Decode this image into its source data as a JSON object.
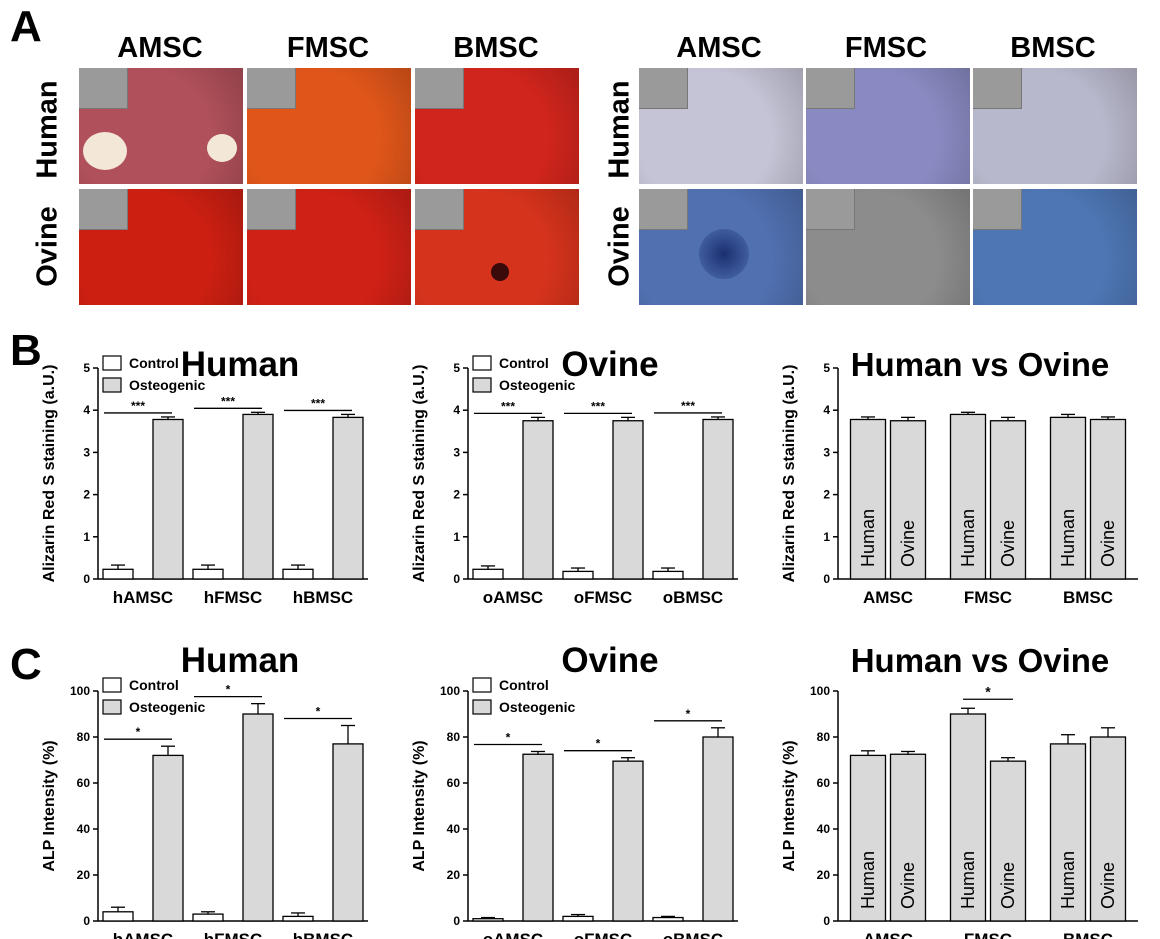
{
  "panels": {
    "A": "A",
    "B": "B",
    "C": "C"
  },
  "micrographs": {
    "column_labels": [
      "AMSC",
      "FMSC",
      "BMSC"
    ],
    "row_labels": [
      "Human",
      "Ovine"
    ],
    "left_colors": [
      [
        "#b0505a",
        "#e0561a",
        "#d0251c"
      ],
      [
        "#cc1f12",
        "#cf2116",
        "#d6331c"
      ]
    ],
    "right_colors": [
      [
        "#c4c4d6",
        "#8a8ac2",
        "#b8b8cc"
      ],
      [
        "#5070b0",
        "#8c8c8c",
        "#4e76b4"
      ]
    ]
  },
  "legend": {
    "control": "Control",
    "osteogenic": "Osteogenic"
  },
  "stars": {
    "three": "***",
    "one": "*"
  },
  "colors": {
    "control": "#ffffff",
    "osteogenic": "#d9d9d9",
    "axis": "#000000"
  },
  "chart_data": [
    {
      "id": "B-human",
      "type": "bar",
      "title": "Human",
      "ylabel": "Alizarin Red S staining (a.U.)",
      "ylim": [
        0,
        5
      ],
      "yticks": [
        0,
        1,
        2,
        3,
        4,
        5
      ],
      "categories": [
        "hAMSC",
        "hFMSC",
        "hBMSC"
      ],
      "series": [
        {
          "name": "Control",
          "values": [
            0.23,
            0.23,
            0.23
          ],
          "errors": [
            0.1,
            0.1,
            0.1
          ]
        },
        {
          "name": "Osteogenic",
          "values": [
            3.78,
            3.9,
            3.83
          ],
          "errors": [
            0.06,
            0.05,
            0.07
          ]
        }
      ],
      "significance": [
        "***",
        "***",
        "***"
      ],
      "legend": true
    },
    {
      "id": "B-ovine",
      "type": "bar",
      "title": "Ovine",
      "ylabel": "Alizarin Red S staining (a.U.)",
      "ylim": [
        0,
        5
      ],
      "yticks": [
        0,
        1,
        2,
        3,
        4,
        5
      ],
      "categories": [
        "oAMSC",
        "oFMSC",
        "oBMSC"
      ],
      "series": [
        {
          "name": "Control",
          "values": [
            0.23,
            0.18,
            0.18
          ],
          "errors": [
            0.08,
            0.08,
            0.08
          ]
        },
        {
          "name": "Osteogenic",
          "values": [
            3.75,
            3.75,
            3.78
          ],
          "errors": [
            0.08,
            0.08,
            0.06
          ]
        }
      ],
      "significance": [
        "***",
        "***",
        "***"
      ],
      "legend": true
    },
    {
      "id": "B-compare",
      "type": "bar",
      "title": "Human vs Ovine",
      "ylabel": "Alizarin Red S staining (a.U.)",
      "ylim": [
        0,
        5
      ],
      "yticks": [
        0,
        1,
        2,
        3,
        4,
        5
      ],
      "categories": [
        "AMSC",
        "FMSC",
        "BMSC"
      ],
      "series": [
        {
          "name": "Human",
          "values": [
            3.78,
            3.9,
            3.83
          ],
          "errors": [
            0.06,
            0.05,
            0.07
          ]
        },
        {
          "name": "Ovine",
          "values": [
            3.75,
            3.75,
            3.78
          ],
          "errors": [
            0.08,
            0.08,
            0.06
          ]
        }
      ],
      "bar_text": true,
      "legend": false
    },
    {
      "id": "C-human",
      "type": "bar",
      "title": "Human",
      "ylabel": "ALP Intensity (%)",
      "ylim": [
        0,
        100
      ],
      "yticks": [
        0,
        20,
        40,
        60,
        80,
        100
      ],
      "categories": [
        "hAMSC",
        "hFMSC",
        "hBMSC"
      ],
      "series": [
        {
          "name": "Control",
          "values": [
            4,
            3,
            2
          ],
          "errors": [
            2,
            1,
            1.5
          ]
        },
        {
          "name": "Osteogenic",
          "values": [
            72,
            90,
            77
          ],
          "errors": [
            4,
            4.5,
            8
          ]
        }
      ],
      "significance": [
        "*",
        "*",
        "*"
      ],
      "legend": true
    },
    {
      "id": "C-ovine",
      "type": "bar",
      "title": "Ovine",
      "ylabel": "ALP Intensity (%)",
      "ylim": [
        0,
        100
      ],
      "yticks": [
        0,
        20,
        40,
        60,
        80,
        100
      ],
      "categories": [
        "oAMSC",
        "oFMSC",
        "oBMSC"
      ],
      "series": [
        {
          "name": "Control",
          "values": [
            1,
            2,
            1.5
          ],
          "errors": [
            0.5,
            0.8,
            0.5
          ]
        },
        {
          "name": "Osteogenic",
          "values": [
            72.5,
            69.5,
            80
          ],
          "errors": [
            1.2,
            1.5,
            4
          ]
        }
      ],
      "significance": [
        "*",
        "*",
        "*"
      ],
      "legend": true
    },
    {
      "id": "C-compare",
      "type": "bar",
      "title": "Human vs Ovine",
      "ylabel": "ALP Intensity (%)",
      "ylim": [
        0,
        100
      ],
      "yticks": [
        0,
        20,
        40,
        60,
        80,
        100
      ],
      "categories": [
        "AMSC",
        "FMSC",
        "BMSC"
      ],
      "series": [
        {
          "name": "Human",
          "values": [
            72,
            90,
            77
          ],
          "errors": [
            2,
            2.5,
            4
          ]
        },
        {
          "name": "Ovine",
          "values": [
            72.5,
            69.5,
            80
          ],
          "errors": [
            1.2,
            1.5,
            4
          ]
        }
      ],
      "bar_text": true,
      "significance_between": {
        "category": 1,
        "label": "*"
      },
      "legend": false
    }
  ]
}
